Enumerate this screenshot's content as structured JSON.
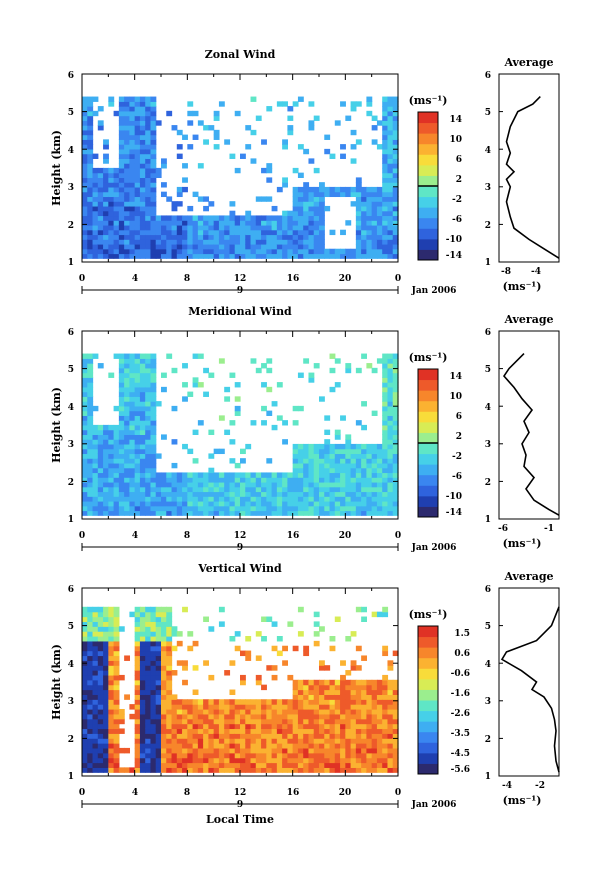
{
  "colors": {
    "scale": [
      "#2c2a6e",
      "#1f3fb0",
      "#2f63dd",
      "#3a86f0",
      "#3eaef2",
      "#46d0e8",
      "#5fe6c6",
      "#9bee8e",
      "#d8ec55",
      "#f8dc3a",
      "#fbb231",
      "#f7862b",
      "#ee5a2a",
      "#e03225"
    ]
  },
  "panels": [
    {
      "title": "Zonal Wind",
      "colorbar_unit": "(ms⁻¹)",
      "colorbar_ticks": [
        "14",
        "10",
        "6",
        "2",
        "-2",
        "-6",
        "-10",
        "-14"
      ],
      "ylabel": "Height (km)",
      "yticks": [
        "1",
        "2",
        "3",
        "4",
        "5",
        "6"
      ],
      "xticks": [
        "0",
        "4",
        "8",
        "12",
        "16",
        "20",
        "0"
      ],
      "date_marker": "9",
      "date_label": "Jan 2006",
      "avg_title": "Average",
      "avg_xticks": [
        "-8",
        "-4"
      ],
      "avg_unit": "(ms⁻¹)"
    },
    {
      "title": "Meridional Wind",
      "colorbar_unit": "(ms⁻¹)",
      "colorbar_ticks": [
        "14",
        "10",
        "6",
        "2",
        "-2",
        "-6",
        "-10",
        "-14"
      ],
      "ylabel": "Height (km)",
      "yticks": [
        "1",
        "2",
        "3",
        "4",
        "5",
        "6"
      ],
      "xticks": [
        "0",
        "4",
        "8",
        "12",
        "16",
        "20",
        "0"
      ],
      "date_marker": "9",
      "date_label": "Jan 2006",
      "avg_title": "Average",
      "avg_xticks": [
        "-6",
        "-1"
      ],
      "avg_unit": "(ms⁻¹)"
    },
    {
      "title": "Vertical Wind",
      "colorbar_unit": "(ms⁻¹)",
      "colorbar_ticks": [
        "1.5",
        "0.6",
        "-0.6",
        "-1.6",
        "-2.6",
        "-3.5",
        "-4.5",
        "-5.6"
      ],
      "ylabel": "Height (km)",
      "yticks": [
        "1",
        "2",
        "3",
        "4",
        "5",
        "6"
      ],
      "xticks": [
        "0",
        "4",
        "8",
        "12",
        "16",
        "20",
        "0"
      ],
      "date_marker": "9",
      "date_label": "Jan 2006",
      "avg_title": "Average",
      "avg_xticks": [
        "-4",
        "-2"
      ],
      "avg_unit": "(ms⁻¹)",
      "xlabel": "Local Time"
    }
  ],
  "chart_data": [
    {
      "type": "heatmap",
      "title": "Zonal Wind",
      "xlabel": "",
      "ylabel": "Height (km)",
      "xlim": [
        0,
        24
      ],
      "ylim": [
        1,
        6
      ],
      "clim": [
        -14,
        14
      ],
      "data_top_km": 5.4,
      "gaps": [
        [
          1.0,
          2.8,
          3.5,
          5.4
        ],
        [
          5.5,
          16.0,
          2.3,
          5.4
        ],
        [
          16.0,
          23.0,
          3.0,
          5.4
        ],
        [
          18.5,
          21.0,
          1.3,
          2.8
        ]
      ],
      "base": -8,
      "average_profile": {
        "title": "Average",
        "x": [
          -3.5,
          -4.5,
          -6.5,
          -7.5,
          -8.0,
          -7.5,
          -8.0,
          -7.0,
          -8.0,
          -7.5,
          -8.0,
          -7.5,
          -7.0,
          -5.0,
          -3.0,
          -1.0
        ],
        "y": [
          5.4,
          5.2,
          5.0,
          4.6,
          4.2,
          3.9,
          3.6,
          3.4,
          3.2,
          3.0,
          2.6,
          2.2,
          1.9,
          1.6,
          1.35,
          1.1
        ],
        "xlim": [
          -9,
          -1
        ]
      }
    },
    {
      "type": "heatmap",
      "title": "Meridional Wind",
      "xlabel": "",
      "ylabel": "Height (km)",
      "xlim": [
        0,
        24
      ],
      "ylim": [
        1,
        6
      ],
      "clim": [
        -14,
        14
      ],
      "data_top_km": 5.4,
      "gaps": [
        [
          1.0,
          2.8,
          3.5,
          5.4
        ],
        [
          5.5,
          16.0,
          2.3,
          5.4
        ],
        [
          16.0,
          23.0,
          3.0,
          5.4
        ]
      ],
      "base": -5,
      "average_profile": {
        "title": "Average",
        "x": [
          -4.0,
          -5.5,
          -6.0,
          -5.0,
          -4.2,
          -3.2,
          -4.0,
          -3.5,
          -4.2,
          -3.8,
          -4.0,
          -3.0,
          -3.8,
          -3.0,
          -1.5,
          -0.5
        ],
        "y": [
          5.4,
          5.0,
          4.8,
          4.5,
          4.2,
          3.9,
          3.6,
          3.3,
          3.0,
          2.7,
          2.4,
          2.1,
          1.8,
          1.5,
          1.25,
          1.1
        ],
        "xlim": [
          -6.5,
          -0.5
        ]
      }
    },
    {
      "type": "heatmap",
      "title": "Vertical Wind",
      "xlabel": "Local Time",
      "ylabel": "Height (km)",
      "xlim": [
        0,
        24
      ],
      "ylim": [
        1,
        6
      ],
      "clim": [
        -5.6,
        1.5
      ],
      "data_top_km": 5.5,
      "gaps": [
        [
          3.0,
          4.0,
          1.2,
          5.5
        ],
        [
          7.0,
          16.0,
          3.0,
          5.5
        ],
        [
          16.0,
          20.0,
          3.5,
          5.5
        ],
        [
          20.0,
          24.0,
          3.5,
          5.5
        ]
      ],
      "base": 0.2,
      "average_profile": {
        "title": "Average",
        "x": [
          -1.0,
          -1.5,
          -2.5,
          -4.5,
          -4.8,
          -3.5,
          -2.5,
          -2.8,
          -2.0,
          -1.5,
          -1.3,
          -1.2,
          -1.3,
          -1.2,
          -1.0
        ],
        "y": [
          5.5,
          5.0,
          4.6,
          4.3,
          4.1,
          3.8,
          3.5,
          3.3,
          3.1,
          2.8,
          2.5,
          2.2,
          1.8,
          1.4,
          1.1
        ],
        "xlim": [
          -5,
          -1
        ]
      }
    }
  ]
}
